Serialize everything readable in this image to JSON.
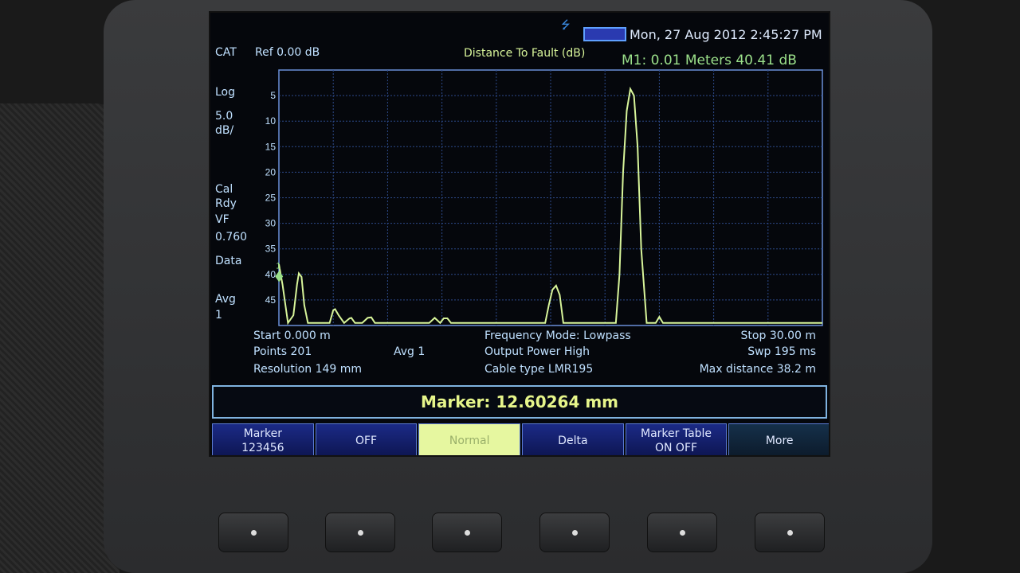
{
  "status": {
    "datetime": "Mon, 27 Aug 2012 2:45:27 PM",
    "icons": [
      "usb-icon",
      "battery-icon"
    ]
  },
  "header": {
    "mode": "CAT",
    "ref": "Ref 0.00 dB",
    "title": "Distance To Fault (dB)",
    "marker_readout": "M1:  0.01  Meters   40.41 dB"
  },
  "left_panel": {
    "scale": "Log",
    "per_div": "5.0",
    "per_div_unit": "dB/",
    "cal": "Cal",
    "rdy": "Rdy",
    "vf": "VF",
    "vf_value": "0.760",
    "data": "Data",
    "avg": "Avg",
    "avg_value": "1"
  },
  "footer": {
    "start": "Start 0.000 m",
    "points": "Points 201",
    "avg": "Avg  1",
    "resolution": "Resolution 149 mm",
    "freq_mode": "Frequency Mode: Lowpass",
    "power": "Output Power High",
    "cable": "Cable type LMR195",
    "stop": "Stop 30.00 m",
    "sweep": "Swp 195 ms",
    "max_distance": "Max distance 38.2  m"
  },
  "marker_bar": "Marker: 12.60264 mm",
  "softkeys": [
    {
      "line1": "Marker",
      "line2": "123456"
    },
    {
      "line1": "OFF"
    },
    {
      "line1": "Normal",
      "selected": true
    },
    {
      "line1": "Delta"
    },
    {
      "line1": "Marker Table",
      "line2": "ON  OFF"
    },
    {
      "line1": "More"
    }
  ],
  "chart_data": {
    "type": "line",
    "title": "Distance To Fault (dB)",
    "xlim": [
      0,
      30
    ],
    "ylim": [
      0,
      50
    ],
    "y_inverted": true,
    "yticks": [
      5,
      10,
      15,
      20,
      25,
      30,
      35,
      40,
      45
    ],
    "grid": true,
    "trace_color": "#d8f59a",
    "grid_color": "#2d4a8a",
    "x": [
      0,
      0.2,
      0.5,
      0.8,
      1.0,
      1.1,
      1.25,
      1.4,
      1.6,
      2.8,
      3.0,
      3.1,
      3.3,
      3.6,
      3.9,
      4.0,
      4.2,
      4.6,
      4.9,
      5.1,
      5.3,
      5.6,
      8.3,
      8.6,
      8.9,
      9.1,
      9.3,
      9.5,
      14.7,
      14.9,
      15.1,
      15.3,
      15.5,
      15.7,
      16,
      18.6,
      18.8,
      19.0,
      19.2,
      19.4,
      19.6,
      19.8,
      20.0,
      20.3,
      20.6,
      20.8,
      21.0,
      21.2,
      21.5,
      30
    ],
    "y": [
      38,
      42,
      49.5,
      48,
      42,
      39.8,
      40.5,
      46,
      49.5,
      49.5,
      47,
      46.8,
      48,
      49.5,
      48.6,
      48.5,
      49.5,
      49.5,
      48.5,
      48.4,
      49.5,
      49.5,
      49.5,
      48.5,
      49.5,
      48.6,
      48.6,
      49.5,
      49.5,
      46,
      43,
      42.2,
      44,
      49.5,
      49.5,
      49.5,
      40,
      20,
      8,
      3.7,
      5,
      15,
      35,
      49.5,
      49.5,
      49.5,
      48.3,
      49.5,
      49.5,
      49.5
    ],
    "marker": {
      "label": "1",
      "x": 0.01,
      "y": 40.41
    }
  }
}
